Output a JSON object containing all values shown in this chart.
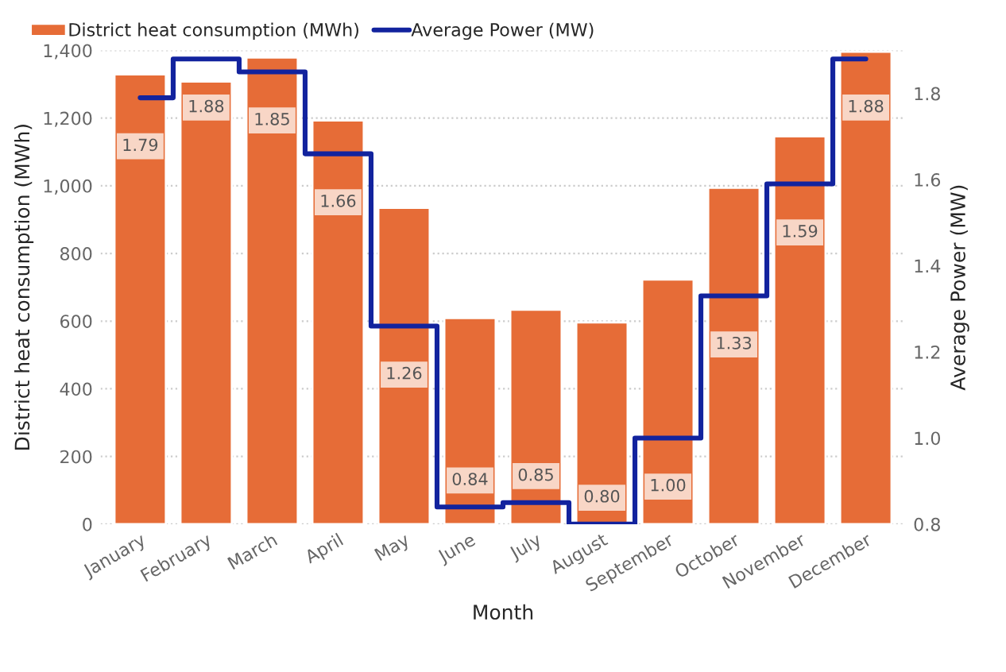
{
  "chart_data": {
    "type": "bar",
    "xlabel": "Month",
    "ylabel": "District heat consumption (MWh)",
    "y2label": "Average Power (MW)",
    "categories": [
      "January",
      "February",
      "March",
      "April",
      "May",
      "June",
      "July",
      "August",
      "September",
      "October",
      "November",
      "December"
    ],
    "series": [
      {
        "name": "District heat consumption (MWh)",
        "color": "#e66c37",
        "values": [
          1329,
          1308,
          1379,
          1193,
          935,
          609,
          634,
          596,
          723,
          994,
          1146,
          1396
        ]
      },
      {
        "name": "Average Power (MW)",
        "color": "#12239e",
        "type": "step",
        "axis": "y2",
        "values": [
          1.79,
          1.88,
          1.85,
          1.66,
          1.26,
          0.84,
          0.85,
          0.8,
          1.0,
          1.33,
          1.59,
          1.88
        ],
        "value_labels": [
          "1.79",
          "1.88",
          "1.85",
          "1.66",
          "1.26",
          "0.84",
          "0.85",
          "0.80",
          "1.00",
          "1.33",
          "1.59",
          "1.88"
        ]
      }
    ],
    "ylim": [
      0,
      1400
    ],
    "yticks": [
      {
        "value": 0,
        "label": "0"
      },
      {
        "value": 200,
        "label": "200"
      },
      {
        "value": 400,
        "label": "400"
      },
      {
        "value": 600,
        "label": "600"
      },
      {
        "value": 800,
        "label": "800"
      },
      {
        "value": 1000,
        "label": "1,000"
      },
      {
        "value": 1200,
        "label": "1,200"
      },
      {
        "value": 1400,
        "label": "1,400"
      }
    ],
    "y2lim": [
      0.8,
      1.9
    ],
    "y2ticks": [
      {
        "value": 0.8,
        "label": "0.8"
      },
      {
        "value": 1.0,
        "label": "1.0"
      },
      {
        "value": 1.2,
        "label": "1.2"
      },
      {
        "value": 1.4,
        "label": "1.4"
      },
      {
        "value": 1.6,
        "label": "1.6"
      },
      {
        "value": 1.8,
        "label": "1.8"
      }
    ],
    "grid": "y",
    "legend": "top left"
  }
}
